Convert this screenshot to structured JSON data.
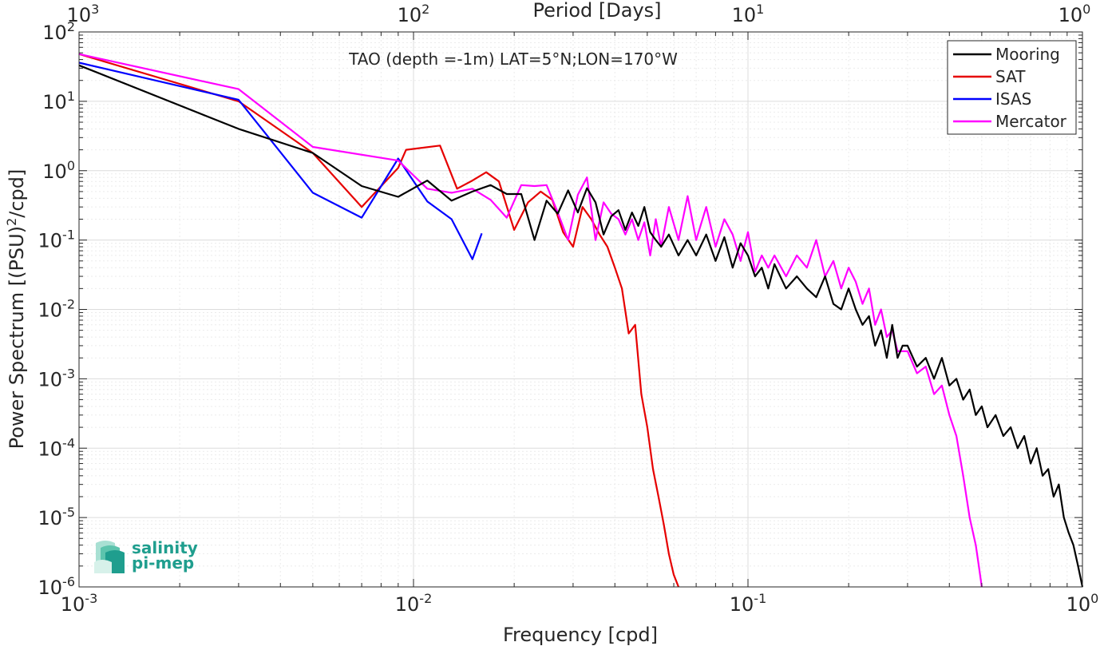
{
  "chart_data": {
    "type": "line",
    "xlabel": "Frequency [cpd]",
    "ylabel": "Power Spectrum [(PSU)²/cpd]",
    "top_axis_label": "Period [Days]",
    "annotation": "TAO (depth =-1m) LAT=5°N;LON=170°W",
    "x_scale": "log",
    "y_scale": "log",
    "xlim": [
      0.001,
      1
    ],
    "ylim": [
      1e-06,
      100
    ],
    "grid": true,
    "legend_position": "top-right",
    "x_ticks": [
      {
        "value": 0.001,
        "base": "10",
        "exp": "-3"
      },
      {
        "value": 0.01,
        "base": "10",
        "exp": "-2"
      },
      {
        "value": 0.1,
        "base": "10",
        "exp": "-1"
      },
      {
        "value": 1,
        "base": "10",
        "exp": "0"
      }
    ],
    "top_ticks": [
      {
        "value": 0.001,
        "base": "10",
        "exp": "3"
      },
      {
        "value": 0.01,
        "base": "10",
        "exp": "2"
      },
      {
        "value": 0.1,
        "base": "10",
        "exp": "1"
      },
      {
        "value": 1,
        "base": "10",
        "exp": "0"
      }
    ],
    "y_ticks": [
      {
        "value": 100,
        "base": "10",
        "exp": "2"
      },
      {
        "value": 10,
        "base": "10",
        "exp": "1"
      },
      {
        "value": 1,
        "base": "10",
        "exp": "0"
      },
      {
        "value": 0.1,
        "base": "10",
        "exp": "-1"
      },
      {
        "value": 0.01,
        "base": "10",
        "exp": "-2"
      },
      {
        "value": 0.001,
        "base": "10",
        "exp": "-3"
      },
      {
        "value": 0.0001,
        "base": "10",
        "exp": "-4"
      },
      {
        "value": 1e-05,
        "base": "10",
        "exp": "-5"
      },
      {
        "value": 1e-06,
        "base": "10",
        "exp": "-6"
      }
    ],
    "series": [
      {
        "name": "Mooring",
        "color": "#000000",
        "x": [
          0.001,
          0.003,
          0.005,
          0.007,
          0.009,
          0.011,
          0.013,
          0.015,
          0.017,
          0.019,
          0.021,
          0.023,
          0.025,
          0.027,
          0.029,
          0.031,
          0.033,
          0.035,
          0.037,
          0.039,
          0.041,
          0.043,
          0.045,
          0.047,
          0.049,
          0.051,
          0.053,
          0.055,
          0.058,
          0.062,
          0.066,
          0.07,
          0.075,
          0.08,
          0.085,
          0.09,
          0.095,
          0.1,
          0.105,
          0.11,
          0.115,
          0.12,
          0.13,
          0.14,
          0.15,
          0.16,
          0.17,
          0.18,
          0.19,
          0.2,
          0.21,
          0.22,
          0.23,
          0.24,
          0.25,
          0.26,
          0.27,
          0.28,
          0.29,
          0.3,
          0.32,
          0.34,
          0.36,
          0.38,
          0.4,
          0.42,
          0.44,
          0.46,
          0.48,
          0.5,
          0.52,
          0.55,
          0.58,
          0.61,
          0.64,
          0.67,
          0.7,
          0.73,
          0.76,
          0.79,
          0.82,
          0.85,
          0.88,
          0.91,
          0.94,
          0.97,
          1.0
        ],
        "y": [
          33,
          4,
          1.8,
          0.6,
          0.42,
          0.72,
          0.37,
          0.5,
          0.62,
          0.46,
          0.46,
          0.1,
          0.37,
          0.24,
          0.52,
          0.25,
          0.56,
          0.35,
          0.12,
          0.22,
          0.27,
          0.14,
          0.25,
          0.16,
          0.3,
          0.13,
          0.1,
          0.08,
          0.12,
          0.06,
          0.1,
          0.06,
          0.12,
          0.05,
          0.11,
          0.04,
          0.09,
          0.06,
          0.03,
          0.04,
          0.02,
          0.045,
          0.02,
          0.03,
          0.02,
          0.015,
          0.03,
          0.012,
          0.01,
          0.02,
          0.01,
          0.006,
          0.008,
          0.003,
          0.005,
          0.002,
          0.006,
          0.002,
          0.003,
          0.003,
          0.0015,
          0.002,
          0.001,
          0.002,
          0.0008,
          0.001,
          0.0005,
          0.0007,
          0.0003,
          0.0004,
          0.0002,
          0.0003,
          0.00015,
          0.0002,
          0.0001,
          0.00015,
          6e-05,
          0.0001,
          4e-05,
          5e-05,
          2e-05,
          3e-05,
          1e-05,
          6e-06,
          4e-06,
          2e-06,
          1e-06
        ]
      },
      {
        "name": "SAT",
        "color": "#e60000",
        "x": [
          0.001,
          0.003,
          0.005,
          0.007,
          0.009,
          0.0095,
          0.012,
          0.0135,
          0.015,
          0.0165,
          0.018,
          0.02,
          0.022,
          0.024,
          0.026,
          0.028,
          0.03,
          0.032,
          0.034,
          0.036,
          0.038,
          0.04,
          0.042,
          0.044,
          0.046,
          0.048,
          0.05,
          0.052,
          0.054,
          0.056,
          0.058,
          0.06,
          0.062
        ],
        "y": [
          48,
          10,
          1.8,
          0.3,
          1.1,
          2.0,
          2.3,
          0.55,
          0.72,
          0.95,
          0.7,
          0.14,
          0.35,
          0.5,
          0.38,
          0.13,
          0.08,
          0.3,
          0.2,
          0.12,
          0.08,
          0.04,
          0.02,
          0.0045,
          0.006,
          0.0006,
          0.0002,
          5e-05,
          2e-05,
          8e-06,
          3e-06,
          1.5e-06,
          1e-06
        ]
      },
      {
        "name": "ISAS",
        "color": "#0000ff",
        "x": [
          0.001,
          0.003,
          0.005,
          0.007,
          0.009,
          0.011,
          0.013,
          0.015,
          0.016
        ],
        "y": [
          36,
          10.5,
          0.48,
          0.21,
          1.5,
          0.36,
          0.2,
          0.053,
          0.125
        ]
      },
      {
        "name": "Mercator",
        "color": "#ff00ff",
        "x": [
          0.001,
          0.003,
          0.005,
          0.009,
          0.011,
          0.013,
          0.015,
          0.017,
          0.019,
          0.021,
          0.023,
          0.025,
          0.027,
          0.029,
          0.031,
          0.033,
          0.035,
          0.037,
          0.039,
          0.041,
          0.043,
          0.045,
          0.047,
          0.049,
          0.051,
          0.053,
          0.055,
          0.058,
          0.062,
          0.066,
          0.07,
          0.075,
          0.08,
          0.085,
          0.09,
          0.095,
          0.1,
          0.105,
          0.11,
          0.115,
          0.12,
          0.13,
          0.14,
          0.15,
          0.16,
          0.17,
          0.18,
          0.19,
          0.2,
          0.21,
          0.22,
          0.23,
          0.24,
          0.25,
          0.26,
          0.27,
          0.28,
          0.3,
          0.32,
          0.34,
          0.36,
          0.38,
          0.4,
          0.42,
          0.44,
          0.46,
          0.48,
          0.49,
          0.5
        ],
        "y": [
          48,
          15,
          2.2,
          1.4,
          0.55,
          0.48,
          0.55,
          0.38,
          0.21,
          0.62,
          0.6,
          0.62,
          0.25,
          0.1,
          0.45,
          0.8,
          0.1,
          0.35,
          0.24,
          0.2,
          0.12,
          0.2,
          0.1,
          0.18,
          0.06,
          0.2,
          0.08,
          0.3,
          0.1,
          0.43,
          0.1,
          0.3,
          0.08,
          0.2,
          0.12,
          0.05,
          0.13,
          0.035,
          0.06,
          0.04,
          0.06,
          0.03,
          0.06,
          0.04,
          0.1,
          0.03,
          0.05,
          0.02,
          0.04,
          0.025,
          0.012,
          0.02,
          0.006,
          0.01,
          0.004,
          0.005,
          0.0025,
          0.0025,
          0.0012,
          0.0015,
          0.0006,
          0.0008,
          0.0003,
          0.00015,
          4e-05,
          1e-05,
          4e-06,
          2e-06,
          1e-06
        ]
      }
    ]
  },
  "logo": {
    "line1": "salinity",
    "line2": "pi-mep"
  }
}
